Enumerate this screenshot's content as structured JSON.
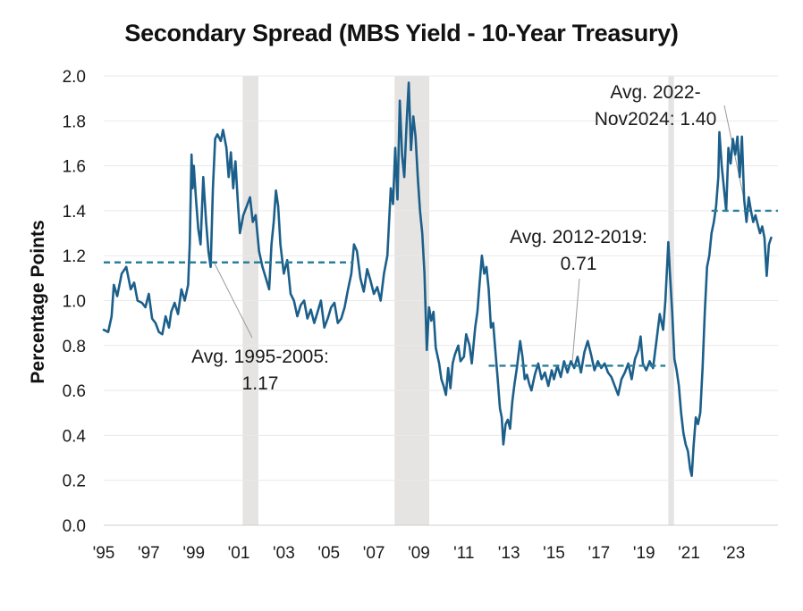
{
  "chart_data": {
    "type": "line",
    "title": "Secondary Spread (MBS Yield - 10-Year Treasury)",
    "xlabel": "",
    "ylabel": "Percentage Points",
    "ylim": [
      0,
      2.0
    ],
    "yticks": [
      0.0,
      0.2,
      0.4,
      0.6,
      0.8,
      1.0,
      1.2,
      1.4,
      1.6,
      1.8,
      2.0
    ],
    "ytick_labels": [
      "0.0",
      "0.2",
      "0.4",
      "0.6",
      "0.8",
      "1.0",
      "1.2",
      "1.4",
      "1.6",
      "1.8",
      "2.0"
    ],
    "xlim": [
      1995,
      2024.95
    ],
    "xticks": [
      1995,
      1997,
      1999,
      2001,
      2003,
      2005,
      2007,
      2009,
      2011,
      2013,
      2015,
      2017,
      2019,
      2021,
      2023
    ],
    "xtick_labels": [
      "'95",
      "'97",
      "'99",
      "'01",
      "'03",
      "'05",
      "'07",
      "'09",
      "'11",
      "'13",
      "'15",
      "'17",
      "'19",
      "'21",
      "'23"
    ],
    "grid": "horizontal",
    "colors": {
      "line": "#1b5f8a",
      "average": "#2a7f9e",
      "recession": "#e6e4e2",
      "leader": "#9a9a9a"
    },
    "recessions": [
      [
        2001.17,
        2001.87
      ],
      [
        2007.92,
        2009.46
      ],
      [
        2020.08,
        2020.33
      ]
    ],
    "series": [
      {
        "values": [
          [
            1995.0,
            0.87
          ],
          [
            1995.2,
            0.86
          ],
          [
            1995.35,
            0.93
          ],
          [
            1995.45,
            1.07
          ],
          [
            1995.6,
            1.02
          ],
          [
            1995.8,
            1.12
          ],
          [
            1996.0,
            1.15
          ],
          [
            1996.2,
            1.05
          ],
          [
            1996.35,
            1.08
          ],
          [
            1996.5,
            1.0
          ],
          [
            1996.7,
            0.99
          ],
          [
            1996.85,
            0.97
          ],
          [
            1997.0,
            1.03
          ],
          [
            1997.15,
            0.92
          ],
          [
            1997.3,
            0.9
          ],
          [
            1997.45,
            0.86
          ],
          [
            1997.6,
            0.85
          ],
          [
            1997.75,
            0.93
          ],
          [
            1997.9,
            0.88
          ],
          [
            1998.0,
            0.95
          ],
          [
            1998.15,
            0.99
          ],
          [
            1998.3,
            0.94
          ],
          [
            1998.45,
            1.05
          ],
          [
            1998.6,
            1.0
          ],
          [
            1998.75,
            1.07
          ],
          [
            1998.82,
            1.25
          ],
          [
            1998.9,
            1.65
          ],
          [
            1998.95,
            1.5
          ],
          [
            1999.0,
            1.6
          ],
          [
            1999.1,
            1.45
          ],
          [
            1999.2,
            1.32
          ],
          [
            1999.3,
            1.25
          ],
          [
            1999.42,
            1.55
          ],
          [
            1999.55,
            1.35
          ],
          [
            1999.65,
            1.22
          ],
          [
            1999.75,
            1.15
          ],
          [
            1999.85,
            1.5
          ],
          [
            1999.95,
            1.72
          ],
          [
            2000.05,
            1.74
          ],
          [
            2000.2,
            1.71
          ],
          [
            2000.3,
            1.76
          ],
          [
            2000.45,
            1.68
          ],
          [
            2000.55,
            1.55
          ],
          [
            2000.65,
            1.66
          ],
          [
            2000.75,
            1.5
          ],
          [
            2000.85,
            1.62
          ],
          [
            2000.95,
            1.45
          ],
          [
            2001.05,
            1.3
          ],
          [
            2001.2,
            1.38
          ],
          [
            2001.35,
            1.42
          ],
          [
            2001.5,
            1.46
          ],
          [
            2001.62,
            1.35
          ],
          [
            2001.75,
            1.38
          ],
          [
            2001.9,
            1.22
          ],
          [
            2002.05,
            1.15
          ],
          [
            2002.2,
            1.1
          ],
          [
            2002.35,
            1.05
          ],
          [
            2002.45,
            1.25
          ],
          [
            2002.55,
            1.35
          ],
          [
            2002.65,
            1.49
          ],
          [
            2002.75,
            1.42
          ],
          [
            2002.85,
            1.25
          ],
          [
            2003.0,
            1.12
          ],
          [
            2003.15,
            1.18
          ],
          [
            2003.3,
            1.03
          ],
          [
            2003.45,
            1.0
          ],
          [
            2003.6,
            0.93
          ],
          [
            2003.75,
            0.98
          ],
          [
            2003.9,
            1.0
          ],
          [
            2004.05,
            0.92
          ],
          [
            2004.2,
            0.96
          ],
          [
            2004.35,
            0.9
          ],
          [
            2004.5,
            0.95
          ],
          [
            2004.65,
            1.0
          ],
          [
            2004.8,
            0.88
          ],
          [
            2004.95,
            0.92
          ],
          [
            2005.1,
            0.97
          ],
          [
            2005.25,
            0.99
          ],
          [
            2005.4,
            0.9
          ],
          [
            2005.55,
            0.92
          ],
          [
            2005.7,
            0.97
          ],
          [
            2005.85,
            1.05
          ],
          [
            2006.0,
            1.12
          ],
          [
            2006.12,
            1.25
          ],
          [
            2006.25,
            1.22
          ],
          [
            2006.4,
            1.1
          ],
          [
            2006.55,
            1.04
          ],
          [
            2006.7,
            1.14
          ],
          [
            2006.85,
            1.09
          ],
          [
            2007.0,
            1.03
          ],
          [
            2007.15,
            1.06
          ],
          [
            2007.3,
            1.0
          ],
          [
            2007.45,
            1.12
          ],
          [
            2007.6,
            1.2
          ],
          [
            2007.75,
            1.5
          ],
          [
            2007.85,
            1.43
          ],
          [
            2007.95,
            1.68
          ],
          [
            2008.05,
            1.45
          ],
          [
            2008.15,
            1.89
          ],
          [
            2008.25,
            1.65
          ],
          [
            2008.35,
            1.55
          ],
          [
            2008.45,
            1.78
          ],
          [
            2008.55,
            1.97
          ],
          [
            2008.65,
            1.67
          ],
          [
            2008.75,
            1.82
          ],
          [
            2008.85,
            1.73
          ],
          [
            2008.95,
            1.55
          ],
          [
            2009.05,
            1.4
          ],
          [
            2009.15,
            1.3
          ],
          [
            2009.25,
            1.12
          ],
          [
            2009.35,
            0.78
          ],
          [
            2009.45,
            0.97
          ],
          [
            2009.55,
            0.91
          ],
          [
            2009.65,
            0.95
          ],
          [
            2009.75,
            0.79
          ],
          [
            2009.9,
            0.72
          ],
          [
            2010.0,
            0.65
          ],
          [
            2010.1,
            0.62
          ],
          [
            2010.2,
            0.58
          ],
          [
            2010.3,
            0.7
          ],
          [
            2010.4,
            0.61
          ],
          [
            2010.5,
            0.72
          ],
          [
            2010.6,
            0.76
          ],
          [
            2010.75,
            0.8
          ],
          [
            2010.85,
            0.73
          ],
          [
            2011.0,
            0.75
          ],
          [
            2011.1,
            0.85
          ],
          [
            2011.25,
            0.8
          ],
          [
            2011.35,
            0.72
          ],
          [
            2011.5,
            0.88
          ],
          [
            2011.6,
            0.95
          ],
          [
            2011.7,
            1.08
          ],
          [
            2011.8,
            1.2
          ],
          [
            2011.9,
            1.12
          ],
          [
            2012.0,
            1.15
          ],
          [
            2012.1,
            1.05
          ],
          [
            2012.2,
            0.88
          ],
          [
            2012.3,
            0.9
          ],
          [
            2012.4,
            0.77
          ],
          [
            2012.5,
            0.65
          ],
          [
            2012.6,
            0.52
          ],
          [
            2012.68,
            0.48
          ],
          [
            2012.75,
            0.36
          ],
          [
            2012.85,
            0.45
          ],
          [
            2012.95,
            0.47
          ],
          [
            2013.05,
            0.43
          ],
          [
            2013.15,
            0.55
          ],
          [
            2013.25,
            0.63
          ],
          [
            2013.35,
            0.7
          ],
          [
            2013.5,
            0.82
          ],
          [
            2013.6,
            0.75
          ],
          [
            2013.7,
            0.65
          ],
          [
            2013.8,
            0.67
          ],
          [
            2013.9,
            0.63
          ],
          [
            2014.0,
            0.6
          ],
          [
            2014.15,
            0.67
          ],
          [
            2014.3,
            0.72
          ],
          [
            2014.45,
            0.65
          ],
          [
            2014.6,
            0.68
          ],
          [
            2014.75,
            0.62
          ],
          [
            2014.9,
            0.69
          ],
          [
            2015.0,
            0.65
          ],
          [
            2015.15,
            0.71
          ],
          [
            2015.3,
            0.66
          ],
          [
            2015.45,
            0.73
          ],
          [
            2015.6,
            0.68
          ],
          [
            2015.75,
            0.73
          ],
          [
            2015.9,
            0.7
          ],
          [
            2016.05,
            0.75
          ],
          [
            2016.2,
            0.68
          ],
          [
            2016.35,
            0.77
          ],
          [
            2016.5,
            0.82
          ],
          [
            2016.65,
            0.76
          ],
          [
            2016.8,
            0.69
          ],
          [
            2016.95,
            0.73
          ],
          [
            2017.1,
            0.7
          ],
          [
            2017.25,
            0.72
          ],
          [
            2017.4,
            0.68
          ],
          [
            2017.55,
            0.66
          ],
          [
            2017.7,
            0.62
          ],
          [
            2017.85,
            0.58
          ],
          [
            2018.0,
            0.65
          ],
          [
            2018.15,
            0.68
          ],
          [
            2018.3,
            0.72
          ],
          [
            2018.45,
            0.65
          ],
          [
            2018.6,
            0.74
          ],
          [
            2018.75,
            0.78
          ],
          [
            2018.85,
            0.84
          ],
          [
            2018.95,
            0.72
          ],
          [
            2019.1,
            0.69
          ],
          [
            2019.25,
            0.73
          ],
          [
            2019.4,
            0.7
          ],
          [
            2019.55,
            0.82
          ],
          [
            2019.7,
            0.94
          ],
          [
            2019.85,
            0.87
          ],
          [
            2019.95,
            1.0
          ],
          [
            2020.08,
            1.26
          ],
          [
            2020.15,
            1.12
          ],
          [
            2020.25,
            0.95
          ],
          [
            2020.35,
            0.74
          ],
          [
            2020.45,
            0.69
          ],
          [
            2020.55,
            0.62
          ],
          [
            2020.65,
            0.5
          ],
          [
            2020.75,
            0.41
          ],
          [
            2020.85,
            0.36
          ],
          [
            2020.95,
            0.33
          ],
          [
            2021.05,
            0.25
          ],
          [
            2021.12,
            0.22
          ],
          [
            2021.2,
            0.35
          ],
          [
            2021.3,
            0.48
          ],
          [
            2021.4,
            0.45
          ],
          [
            2021.5,
            0.5
          ],
          [
            2021.6,
            0.7
          ],
          [
            2021.7,
            0.95
          ],
          [
            2021.8,
            1.15
          ],
          [
            2021.9,
            1.2
          ],
          [
            2022.0,
            1.3
          ],
          [
            2022.1,
            1.35
          ],
          [
            2022.2,
            1.42
          ],
          [
            2022.3,
            1.55
          ],
          [
            2022.35,
            1.75
          ],
          [
            2022.45,
            1.6
          ],
          [
            2022.55,
            1.5
          ],
          [
            2022.65,
            1.4
          ],
          [
            2022.75,
            1.68
          ],
          [
            2022.85,
            1.61
          ],
          [
            2022.95,
            1.72
          ],
          [
            2023.05,
            1.65
          ],
          [
            2023.15,
            1.73
          ],
          [
            2023.25,
            1.55
          ],
          [
            2023.35,
            1.73
          ],
          [
            2023.45,
            1.45
          ],
          [
            2023.55,
            1.35
          ],
          [
            2023.65,
            1.46
          ],
          [
            2023.75,
            1.4
          ],
          [
            2023.85,
            1.35
          ],
          [
            2023.95,
            1.38
          ],
          [
            2024.05,
            1.34
          ],
          [
            2024.15,
            1.3
          ],
          [
            2024.25,
            1.33
          ],
          [
            2024.35,
            1.28
          ],
          [
            2024.45,
            1.11
          ],
          [
            2024.55,
            1.25
          ],
          [
            2024.65,
            1.28
          ]
        ]
      }
    ],
    "averages": [
      {
        "label_lines": [
          "Avg. 1995-2005:",
          "1.17"
        ],
        "value": 1.17,
        "x_start": 1995.0,
        "x_end": 2006.1,
        "leader_x": 1999.9
      },
      {
        "label_lines": [
          "Avg. 2012-2019:",
          "0.71"
        ],
        "value": 0.71,
        "x_start": 2012.1,
        "x_end": 2019.95,
        "leader_x": 2015.8
      },
      {
        "label_lines": [
          "Avg. 2022-",
          "Nov2024: 1.40"
        ],
        "value": 1.4,
        "x_start": 2022.0,
        "x_end": 2024.95,
        "leader_x": 2023.55
      }
    ]
  }
}
